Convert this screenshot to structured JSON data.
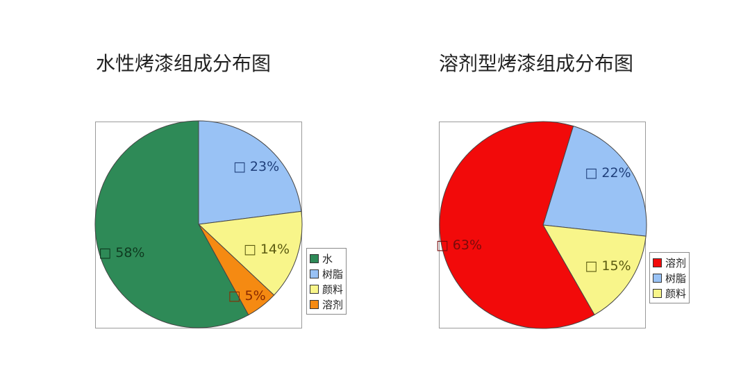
{
  "chart_data": [
    {
      "type": "pie",
      "title": "水性烤漆组成分布图",
      "slices": [
        {
          "name": "树脂",
          "value": 23,
          "label": "□ 23%",
          "color": "#99c2f5",
          "label_color": "#1f3f7a"
        },
        {
          "name": "颜料",
          "value": 14,
          "label": "□ 14%",
          "color": "#f8f58a",
          "label_color": "#5a5a10"
        },
        {
          "name": "溶剂",
          "value": 5,
          "label": "□ 5%",
          "color": "#f58a12",
          "label_color": "#8a2a00"
        },
        {
          "name": "水",
          "value": 58,
          "label": "□ 58%",
          "color": "#2e8a57",
          "label_color": "#0f3a20"
        }
      ],
      "legend": [
        "水",
        "树脂",
        "颜料",
        "溶剂"
      ],
      "legend_colors": [
        "#2e8a57",
        "#99c2f5",
        "#f8f58a",
        "#f58a12"
      ],
      "legend_position": "right"
    },
    {
      "type": "pie",
      "title": "溶剂型烤漆组成分布图",
      "slices": [
        {
          "name": "树脂",
          "value": 22,
          "label": "□ 22%",
          "color": "#99c2f5",
          "label_color": "#1f3f7a"
        },
        {
          "name": "颜料",
          "value": 15,
          "label": "□ 15%",
          "color": "#f8f58a",
          "label_color": "#5a5a10"
        },
        {
          "name": "溶剂",
          "value": 63,
          "label": "□ 63%",
          "color": "#f20a0a",
          "label_color": "#7a0a0a"
        }
      ],
      "legend": [
        "溶剂",
        "树脂",
        "颜料"
      ],
      "legend_colors": [
        "#f20a0a",
        "#99c2f5",
        "#f8f58a"
      ],
      "legend_position": "right"
    }
  ]
}
